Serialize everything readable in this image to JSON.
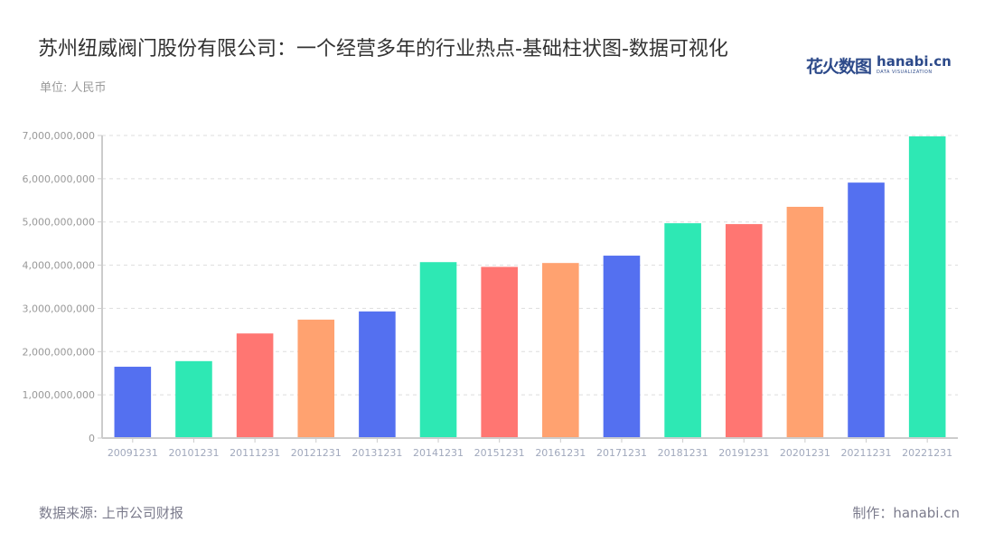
{
  "header": {
    "title": "苏州纽威阀门股份有限公司：一个经营多年的行业热点-基础柱状图-数据可视化",
    "unit": "单位: 人民币",
    "logo_cn": "花火数图",
    "logo_en": "hanabi.cn",
    "logo_sub": "DATA VISUALIZATION"
  },
  "footer": {
    "source": "数据来源: 上市公司财报",
    "credit": "制作：hanabi.cn"
  },
  "colors": [
    "#5470f0",
    "#2ee8b4",
    "#ff7672",
    "#ffa270"
  ],
  "chart_data": {
    "type": "bar",
    "title": "苏州纽威阀门股份有限公司：一个经营多年的行业热点-基础柱状图-数据可视化",
    "xlabel": "",
    "ylabel": "单位: 人民币",
    "ylim": [
      0,
      7000000000
    ],
    "yticks": [
      0,
      1000000000,
      2000000000,
      3000000000,
      4000000000,
      5000000000,
      6000000000,
      7000000000
    ],
    "ytick_labels": [
      "0",
      "1,000,000,000",
      "2,000,000,000",
      "3,000,000,000",
      "4,000,000,000",
      "5,000,000,000",
      "6,000,000,000",
      "7,000,000,000"
    ],
    "grid": true,
    "legend": null,
    "categories": [
      "20091231",
      "20101231",
      "20111231",
      "20121231",
      "20131231",
      "20141231",
      "20151231",
      "20161231",
      "20171231",
      "20181231",
      "20191231",
      "20201231",
      "20211231",
      "20221231"
    ],
    "values": [
      1650000000,
      1780000000,
      2420000000,
      2740000000,
      2930000000,
      4070000000,
      3960000000,
      4050000000,
      4220000000,
      4970000000,
      4950000000,
      5350000000,
      5910000000,
      6980000000
    ],
    "bar_colors": [
      "#5470f0",
      "#2ee8b4",
      "#ff7672",
      "#ffa270",
      "#5470f0",
      "#2ee8b4",
      "#ff7672",
      "#ffa270",
      "#5470f0",
      "#2ee8b4",
      "#ff7672",
      "#ffa270",
      "#5470f0",
      "#2ee8b4"
    ]
  }
}
